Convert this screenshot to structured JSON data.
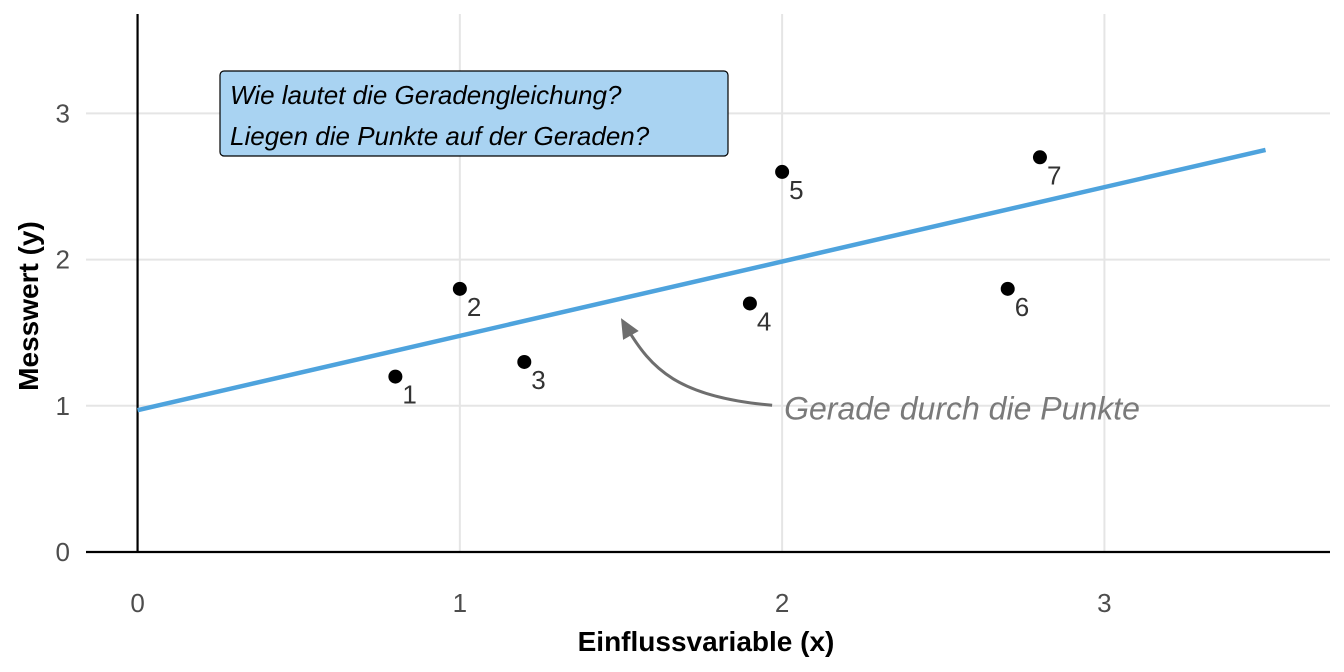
{
  "chart_data": {
    "type": "scatter",
    "title": "",
    "xlabel": "Einflussvariable (x)",
    "ylabel": "Messwert (y)",
    "xlim": [
      -0.16,
      3.7
    ],
    "ylim": [
      0,
      3.68
    ],
    "x_ticks": [
      0,
      1,
      2,
      3
    ],
    "y_ticks": [
      0,
      1,
      2,
      3
    ],
    "grid": true,
    "points": [
      {
        "label": "1",
        "x": 0.8,
        "y": 1.2
      },
      {
        "label": "2",
        "x": 1.0,
        "y": 1.8
      },
      {
        "label": "3",
        "x": 1.2,
        "y": 1.3
      },
      {
        "label": "4",
        "x": 1.9,
        "y": 1.7
      },
      {
        "label": "5",
        "x": 2.0,
        "y": 2.6
      },
      {
        "label": "6",
        "x": 2.7,
        "y": 1.8
      },
      {
        "label": "7",
        "x": 2.8,
        "y": 2.7
      }
    ],
    "line": {
      "x": [
        0,
        3.5
      ],
      "y": [
        0.97,
        2.75
      ],
      "color": "#4ea3dd"
    },
    "annotation": {
      "text": "Gerade durch die Punkte",
      "x": 2.0,
      "y": 0.99,
      "arrow_to": [
        1.5,
        1.6
      ]
    },
    "question_box": {
      "lines": [
        "Wie lautet die Geradengleichung?",
        "Liegen die Punkte auf der Geraden?"
      ],
      "fill": "#a9d3f2"
    },
    "colors": {
      "point": "#000000",
      "grid": "#e5e5e5",
      "axis": "#000000",
      "annotation": "#7a7a7a"
    }
  }
}
